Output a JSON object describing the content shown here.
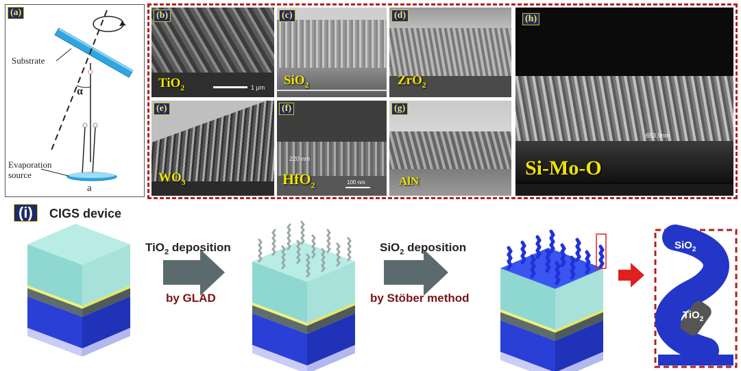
{
  "panel_a": {
    "badge": "(a)",
    "substrate": "Substrate",
    "angle": "α",
    "evaporation_line1": "Evaporation",
    "evaporation_line2": "source",
    "bottom_label": "a"
  },
  "panels": {
    "b": {
      "badge": "(b)",
      "material": "TiO",
      "sub": "2",
      "scale": "1 μm"
    },
    "c": {
      "badge": "(c)",
      "material": "SiO",
      "sub": "2"
    },
    "d": {
      "badge": "(d)",
      "material": "ZrO",
      "sub": "2"
    },
    "e": {
      "badge": "(e)",
      "material": "WO",
      "sub": "3"
    },
    "f": {
      "badge": "(f)",
      "material": "HfO",
      "sub": "2",
      "scale": "100 nm",
      "measure": "220 nm"
    },
    "g": {
      "badge": "(g)",
      "material": "AlN",
      "sub": ""
    },
    "h": {
      "badge": "(h)",
      "material": "Si-Mo-O",
      "measure": "653.9nm"
    }
  },
  "panel_i": {
    "badge": "(i)",
    "title": "CIGS device",
    "step1_main": "TiO",
    "step1_sub": "2",
    "step1_rest": " deposition",
    "step1_method": "by GLAD",
    "step2_main": "SiO",
    "step2_sub": "2",
    "step2_rest": " deposition",
    "step2_method": "by Stöber method",
    "zoom_outer": "SiO",
    "zoom_outer_sub": "2",
    "zoom_inner": "TiO",
    "zoom_inner_sub": "2"
  },
  "colors": {
    "dash": "#b01e1e",
    "badge_bg": "#1d2a6b",
    "material_text": "#f0e400",
    "arrow": "#5b6b6d",
    "red_arrow": "#e0201c"
  }
}
